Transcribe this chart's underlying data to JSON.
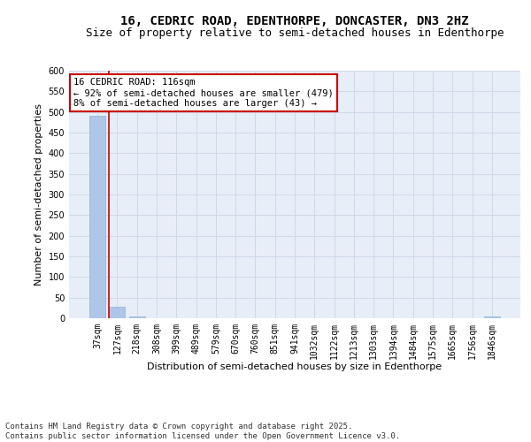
{
  "title_line1": "16, CEDRIC ROAD, EDENTHORPE, DONCASTER, DN3 2HZ",
  "title_line2": "Size of property relative to semi-detached houses in Edenthorpe",
  "xlabel": "Distribution of semi-detached houses by size in Edenthorpe",
  "ylabel": "Number of semi-detached properties",
  "categories": [
    "37sqm",
    "127sqm",
    "218sqm",
    "308sqm",
    "399sqm",
    "489sqm",
    "579sqm",
    "670sqm",
    "760sqm",
    "851sqm",
    "941sqm",
    "1032sqm",
    "1122sqm",
    "1213sqm",
    "1303sqm",
    "1394sqm",
    "1484sqm",
    "1575sqm",
    "1665sqm",
    "1756sqm",
    "1846sqm"
  ],
  "values": [
    490,
    27,
    5,
    0,
    0,
    0,
    0,
    0,
    0,
    0,
    0,
    0,
    0,
    0,
    0,
    0,
    0,
    0,
    0,
    0,
    5
  ],
  "bar_color": "#aec6e8",
  "bar_edge_color": "#8ab4d8",
  "red_line_x": 0.6,
  "annotation_title": "16 CEDRIC ROAD: 116sqm",
  "annotation_line1": "← 92% of semi-detached houses are smaller (479)",
  "annotation_line2": "8% of semi-detached houses are larger (43) →",
  "annotation_box_facecolor": "#ffffff",
  "annotation_box_edgecolor": "#cc0000",
  "ylim": [
    0,
    600
  ],
  "yticks": [
    0,
    50,
    100,
    150,
    200,
    250,
    300,
    350,
    400,
    450,
    500,
    550,
    600
  ],
  "grid_color": "#d0d8e8",
  "bg_color": "#e8eef8",
  "footer_line1": "Contains HM Land Registry data © Crown copyright and database right 2025.",
  "footer_line2": "Contains public sector information licensed under the Open Government Licence v3.0.",
  "title_fontsize": 10,
  "subtitle_fontsize": 9,
  "axis_label_fontsize": 8,
  "tick_fontsize": 7,
  "annotation_fontsize": 7.5,
  "footer_fontsize": 6.5
}
